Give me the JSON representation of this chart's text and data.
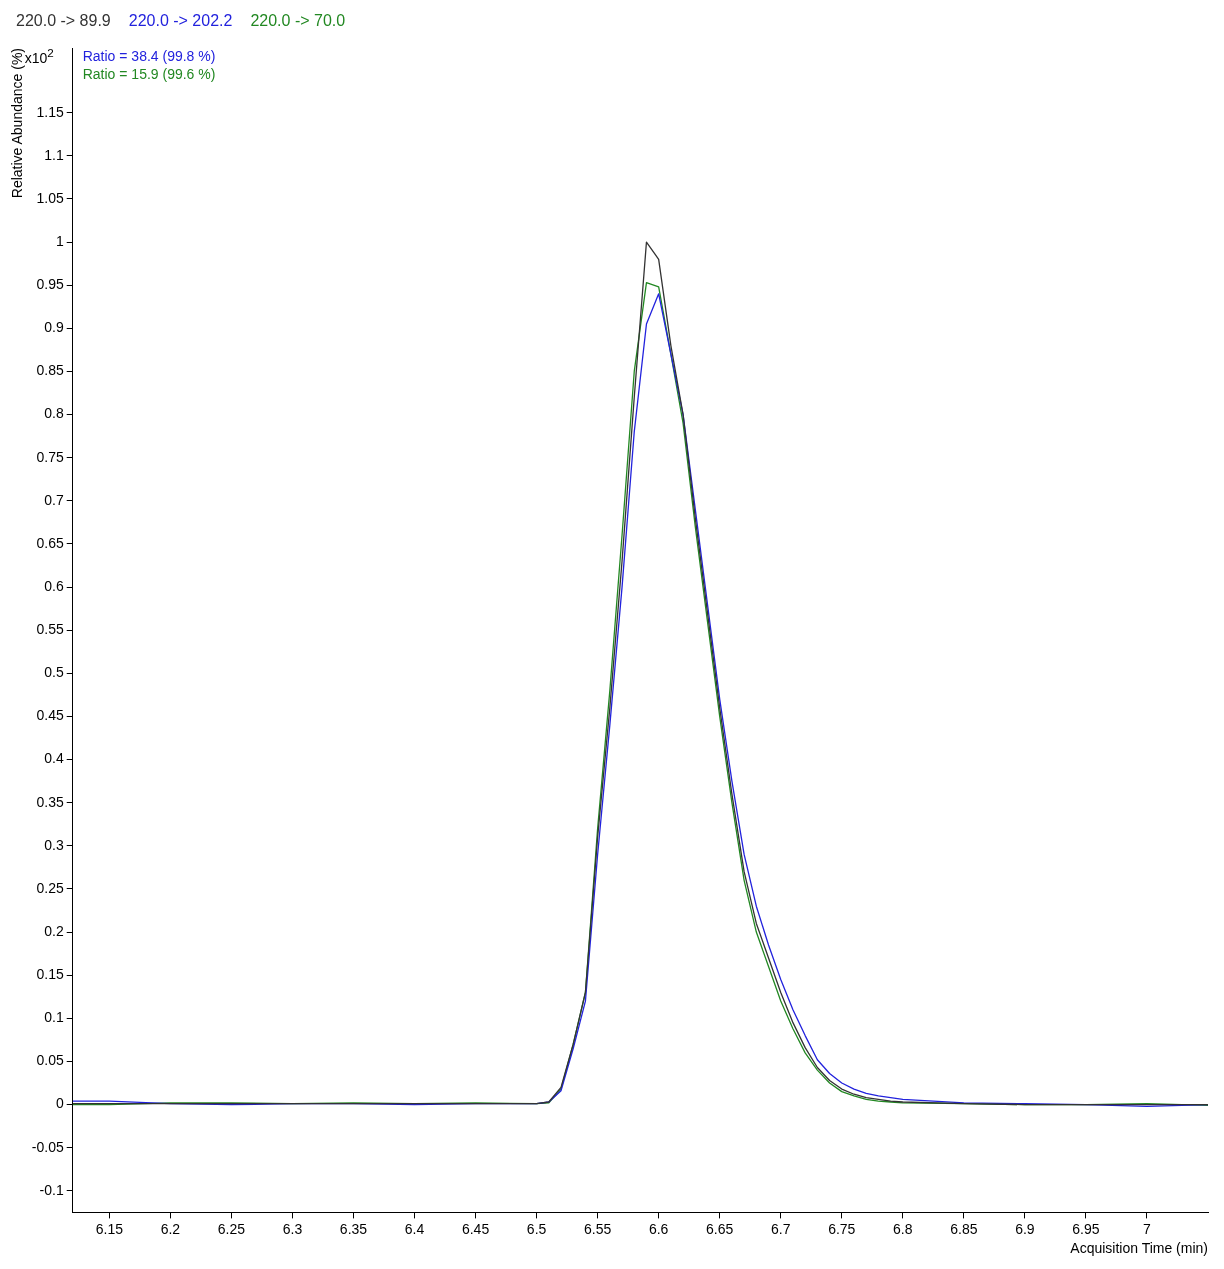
{
  "chart_data": {
    "type": "line",
    "xlabel": "Acquisition Time (min)",
    "ylabel": "Relative Abundance (%)",
    "legend": "top left",
    "marker": "none",
    "line_style": "solid",
    "annotations": [
      "x10$^{2}$",
      "Ratio = 38.4 (99.8 %)",
      "Ratio = 15.9 (99.6 %)"
    ],
    "xlim": [
      6.12,
      7.05
    ],
    "xticks": [
      6.15,
      6.2,
      6.25,
      6.3,
      6.35,
      6.4,
      6.45,
      6.5,
      6.55,
      6.6,
      6.65,
      6.7,
      6.75,
      6.8,
      6.85,
      6.9,
      6.95,
      7
    ],
    "ylim": [
      -0.125,
      1.225
    ],
    "yticks": [
      -0.1,
      -0.05,
      0,
      0.05,
      0.1,
      0.15,
      0.2,
      0.25,
      0.3,
      0.35,
      0.4,
      0.45,
      0.5,
      0.55,
      0.6,
      0.65,
      0.7,
      0.75,
      0.8,
      0.85,
      0.9,
      0.95,
      1,
      1.05,
      1.1,
      1.15
    ],
    "x": [
      6.12,
      6.15,
      6.2,
      6.25,
      6.3,
      6.35,
      6.4,
      6.45,
      6.5,
      6.51,
      6.52,
      6.53,
      6.54,
      6.55,
      6.56,
      6.57,
      6.58,
      6.59,
      6.6,
      6.61,
      6.62,
      6.63,
      6.64,
      6.65,
      6.66,
      6.67,
      6.68,
      6.69,
      6.7,
      6.71,
      6.72,
      6.73,
      6.74,
      6.75,
      6.76,
      6.77,
      6.78,
      6.79,
      6.8,
      6.85,
      6.9,
      6.95,
      7,
      7.05
    ],
    "series": [
      {
        "name": "220.0 -> 89.9",
        "color": "#333333",
        "values": [
          0.001,
          0.001,
          0.001,
          0.001,
          0.001,
          0.001,
          0.001,
          0.001,
          0.001,
          0.003,
          0.02,
          0.07,
          0.13,
          0.31,
          0.46,
          0.63,
          0.82,
          1.0,
          0.98,
          0.88,
          0.8,
          0.68,
          0.57,
          0.46,
          0.36,
          0.27,
          0.21,
          0.17,
          0.13,
          0.095,
          0.066,
          0.043,
          0.028,
          0.018,
          0.012,
          0.008,
          0.006,
          0.004,
          0.003,
          0.001,
          0.0,
          0.0,
          0.0,
          0.0
        ]
      },
      {
        "name": "220.0 -> 202.2",
        "color": "#2222dd",
        "values": [
          0.004,
          0.004,
          0.001,
          0.0,
          0.001,
          0.001,
          0.0,
          0.001,
          0.001,
          0.003,
          0.016,
          0.065,
          0.12,
          0.29,
          0.44,
          0.6,
          0.78,
          0.905,
          0.94,
          0.87,
          0.8,
          0.69,
          0.58,
          0.47,
          0.375,
          0.29,
          0.23,
          0.185,
          0.145,
          0.11,
          0.08,
          0.052,
          0.036,
          0.025,
          0.018,
          0.013,
          0.01,
          0.008,
          0.006,
          0.002,
          0.001,
          0.0,
          -0.002,
          0.0
        ]
      },
      {
        "name": "220.0 -> 70.0",
        "color": "#228822",
        "values": [
          0.0,
          0.0,
          0.002,
          0.002,
          0.001,
          0.002,
          0.001,
          0.002,
          0.001,
          0.002,
          0.018,
          0.07,
          0.13,
          0.32,
          0.48,
          0.66,
          0.85,
          0.953,
          0.948,
          0.87,
          0.79,
          0.67,
          0.56,
          0.45,
          0.35,
          0.26,
          0.2,
          0.16,
          0.12,
          0.088,
          0.06,
          0.04,
          0.025,
          0.015,
          0.01,
          0.006,
          0.004,
          0.003,
          0.002,
          0.001,
          0.0,
          0.0,
          0.001,
          -0.001
        ]
      }
    ]
  }
}
